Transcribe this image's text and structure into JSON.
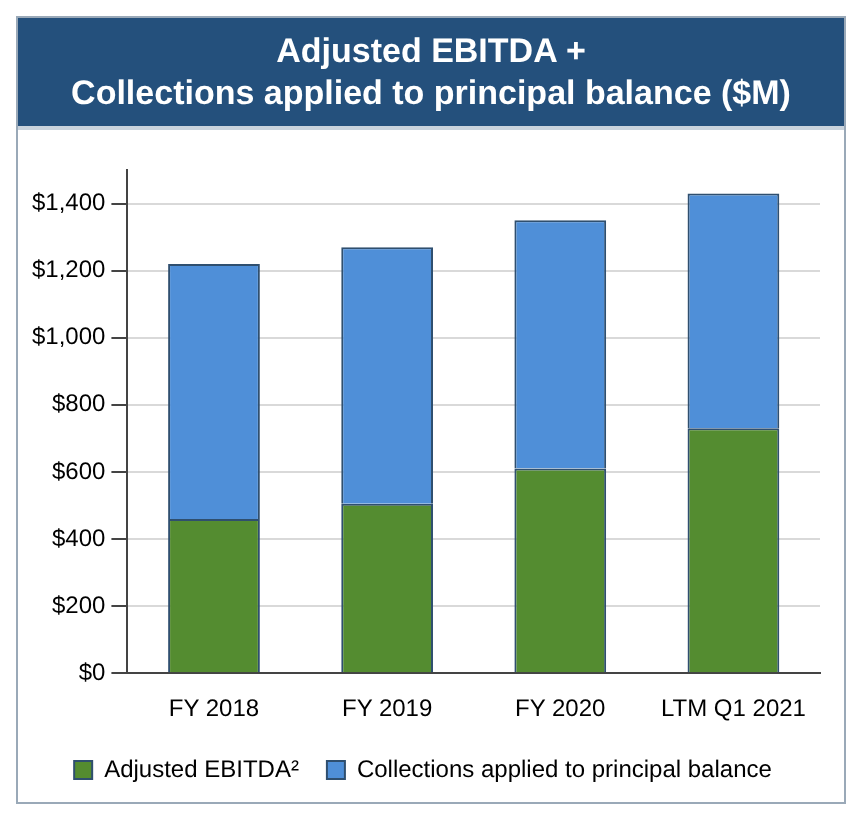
{
  "chart_data": {
    "type": "bar",
    "title": "Adjusted EBITDA +\nCollections applied to principal balance ($M)",
    "categories": [
      "FY 2018",
      "FY 2019",
      "FY 2020",
      "LTM Q1 2021"
    ],
    "series": [
      {
        "name": "Adjusted EBITDA²",
        "color": "#548c30",
        "values": [
          460,
          505,
          610,
          730
        ]
      },
      {
        "name": "Collections applied to principal balance",
        "color": "#4f8fd8",
        "values": [
          760,
          765,
          740,
          700
        ]
      }
    ],
    "stacked": true,
    "ylim": [
      0,
      1500
    ],
    "yticks": [
      {
        "value": 0,
        "label": "$0"
      },
      {
        "value": 200,
        "label": "$200"
      },
      {
        "value": 400,
        "label": "$400"
      },
      {
        "value": 600,
        "label": "$600"
      },
      {
        "value": 800,
        "label": "$800"
      },
      {
        "value": 1000,
        "label": "$1,000"
      },
      {
        "value": 1200,
        "label": "$1,200"
      },
      {
        "value": 1400,
        "label": "$1,400"
      }
    ],
    "grid": "y",
    "legend": "bottom"
  }
}
